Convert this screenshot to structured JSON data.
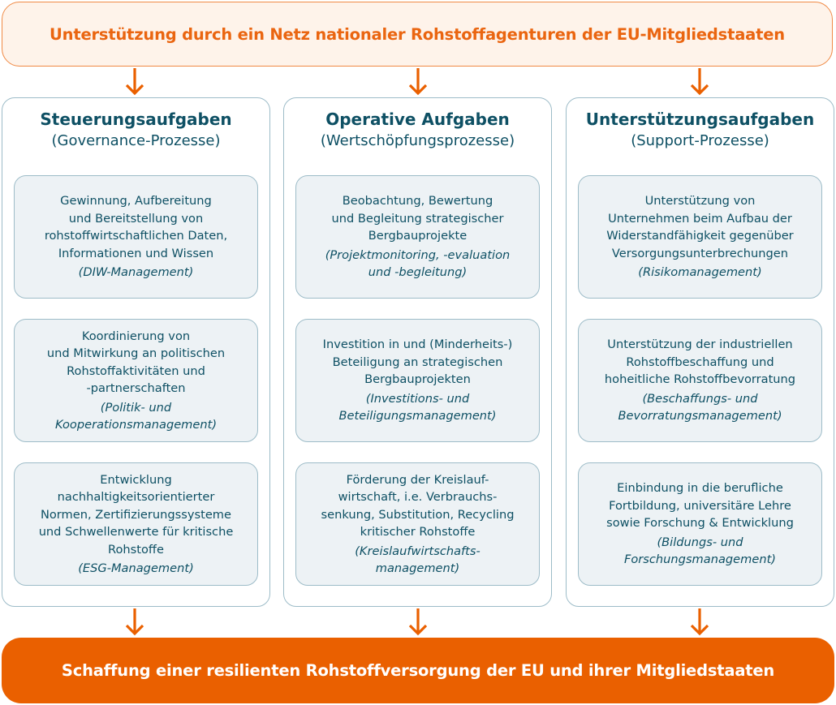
{
  "top_banner": "Unterstützung durch ein Netz nationaler Rohstoffagenturen der EU-Mitgliedstaaten",
  "bottom_banner": "Schaffung einer resilienten Rohstoffversorgung der EU und ihrer Mitgliedstaaten",
  "colors": {
    "accent": "#ea6000",
    "top_fill": "#fef3ea",
    "text": "#0e5064",
    "card_fill": "#edf2f5",
    "border": "#9dbcc8"
  },
  "columns": [
    {
      "title": "Steuerungsaufgaben",
      "subtitle": "(Governance-Prozesse)",
      "cards": [
        {
          "text": "Gewinnung, Aufbereitung\nund Bereitstellung von\nrohstoffwirtschaftlichen Daten,\nInformationen und Wissen",
          "sub": "(DIW-Management)"
        },
        {
          "text": "Koordinierung von\nund Mitwirkung an politischen\nRohstoffaktivitäten und\n-partnerschaften",
          "sub": "(Politik- und\nKooperationsmanagement)"
        },
        {
          "text": "Entwicklung\nnachhaltigkeitsorientierter\nNormen, Zertifizierungssysteme\nund Schwellenwerte für kritische\nRohstoffe",
          "sub": "(ESG-Management)"
        }
      ]
    },
    {
      "title": "Operative Aufgaben",
      "subtitle": "(Wertschöpfungsprozesse)",
      "cards": [
        {
          "text": "Beobachtung, Bewertung\nund Begleitung strategischer\nBergbauprojekte",
          "sub": "(Projektmonitoring, -evaluation\nund -begleitung)"
        },
        {
          "text": "Investition in und (Minderheits-)\nBeteiligung an strategischen\nBergbauprojekten",
          "sub": "(Investitions- und\nBeteiligungsmanagement)"
        },
        {
          "text": "Förderung der Kreislauf-\nwirtschaft, i.e. Verbrauchs-\nsenkung, Substitution, Recycling\nkritischer Rohstoffe",
          "sub": "(Kreislaufwirtschafts-\nmanagement)"
        }
      ]
    },
    {
      "title": "Unterstützungsaufgaben",
      "subtitle": "(Support-Prozesse)",
      "cards": [
        {
          "text": "Unterstützung von\nUnternehmen beim Aufbau der\nWiderstandfähigkeit gegenüber\nVersorgungsunterbrechungen",
          "sub": "(Risikomanagement)"
        },
        {
          "text": "Unterstützung der industriellen\nRohstoffbeschaffung und\nhoheitliche Rohstoffbevorratung",
          "sub": "(Beschaffungs- und\nBevorratungsmanagement)"
        },
        {
          "text": "Einbindung in die berufliche\nFortbildung, universitäre Lehre\nsowie Forschung & Entwicklung",
          "sub": "(Bildungs- und\nForschungsmanagement)"
        }
      ]
    }
  ]
}
